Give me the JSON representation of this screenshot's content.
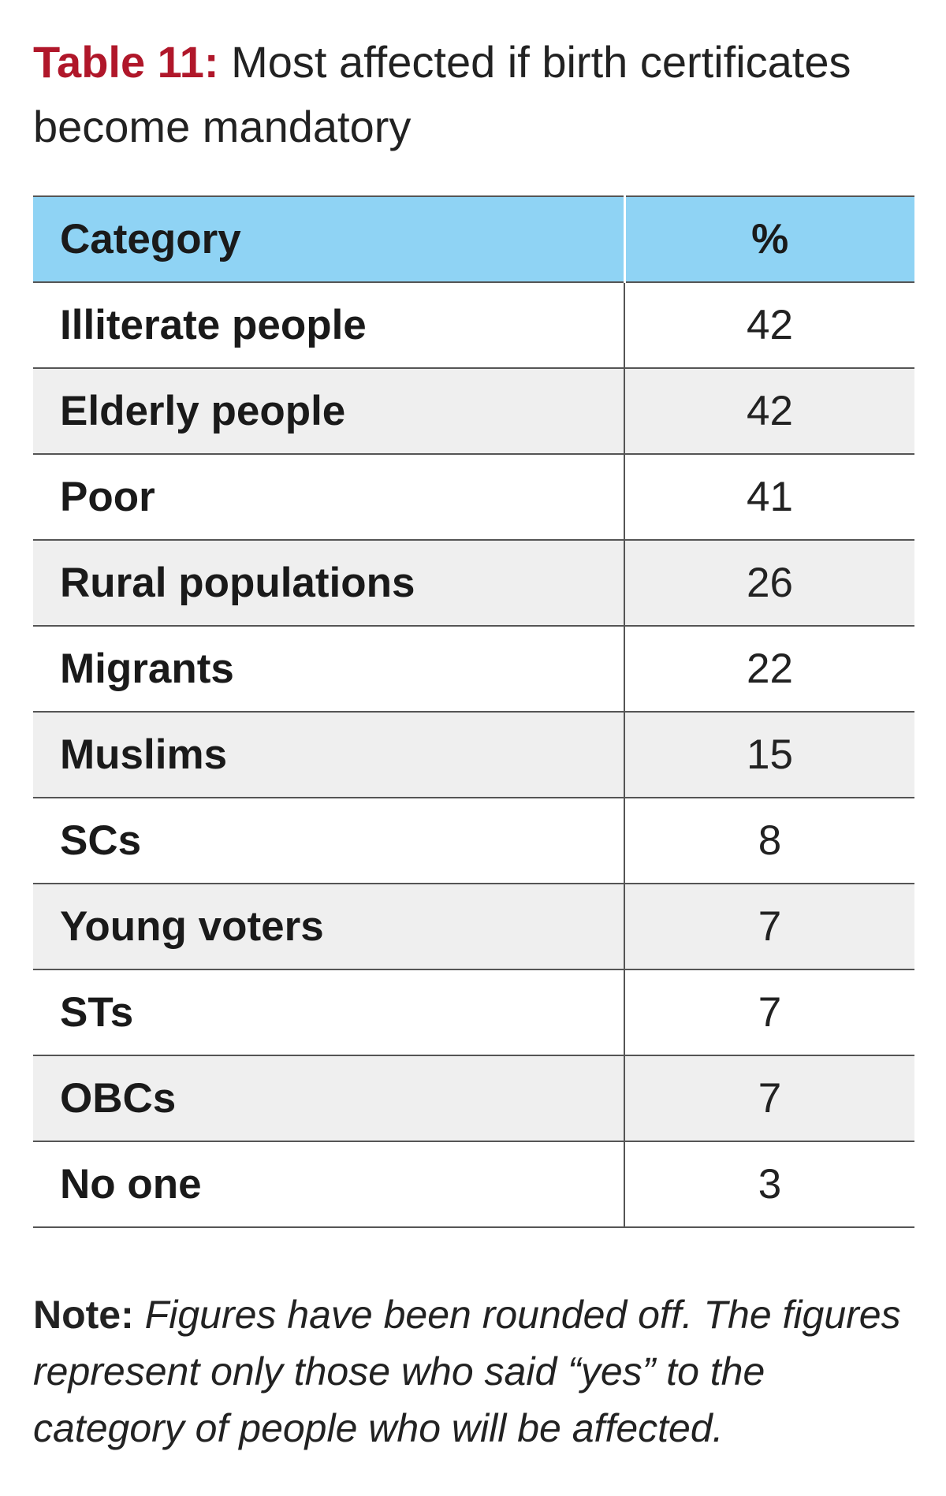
{
  "title": {
    "label": "Table 11:",
    "text": "Most affected if birth certificates become mandatory"
  },
  "table": {
    "headers": [
      "Category",
      "%"
    ],
    "rows": [
      {
        "category": "Illiterate people",
        "percent": "42"
      },
      {
        "category": "Elderly people",
        "percent": "42"
      },
      {
        "category": "Poor",
        "percent": "41"
      },
      {
        "category": "Rural populations",
        "percent": "26"
      },
      {
        "category": "Migrants",
        "percent": "22"
      },
      {
        "category": "Muslims",
        "percent": "15"
      },
      {
        "category": "SCs",
        "percent": "8"
      },
      {
        "category": "Young voters",
        "percent": "7"
      },
      {
        "category": "STs",
        "percent": "7"
      },
      {
        "category": "OBCs",
        "percent": "7"
      },
      {
        "category": "No one",
        "percent": "3"
      }
    ]
  },
  "note": {
    "label": "Note:",
    "text": "Figures have been rounded off. The figures represent only those who said “yes” to the category of people who will be affected."
  },
  "colors": {
    "title_label": "#b0172a",
    "header_bg": "#8fd3f4",
    "stripe_bg": "#efefef"
  }
}
